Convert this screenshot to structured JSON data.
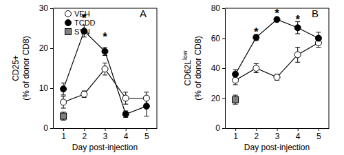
{
  "chart_data": [
    {
      "type": "line",
      "title": "A",
      "xlabel": "Day post-injection",
      "ylabel": [
        [
          "CD25+"
        ],
        [
          "(% of donor CD8)"
        ]
      ],
      "x": [
        1,
        2,
        3,
        4,
        5
      ],
      "xlim": [
        0.5,
        5.5
      ],
      "xticks": [
        1,
        2,
        3,
        4,
        5
      ],
      "ylim": [
        0,
        30
      ],
      "yticks": [
        0,
        10,
        20,
        30
      ],
      "legend": "upper left",
      "series": [
        {
          "name": "VEH",
          "color": "#ffffff",
          "marker": "circle",
          "line_style": "solid",
          "values": [
            6.5,
            8.5,
            14.8,
            7.5,
            7.5
          ],
          "errors": [
            1.5,
            0.8,
            1.5,
            1.5,
            1.5
          ]
        },
        {
          "name": "TCDD",
          "color": "#000000",
          "marker": "circle",
          "line_style": "solid",
          "values": [
            9.8,
            24.3,
            19.2,
            3.5,
            5.5
          ],
          "errors": [
            1.5,
            1.5,
            1.0,
            0.8,
            2.5
          ]
        },
        {
          "name": "SYN",
          "color": "#808080",
          "marker": "square",
          "line_style": "none",
          "values": [
            3,
            null,
            null,
            null,
            null
          ],
          "errors": [
            1,
            null,
            null,
            null,
            null
          ]
        }
      ],
      "annotations": [
        {
          "text": "*",
          "x": 2,
          "y": 28
        },
        {
          "text": "*",
          "x": 3,
          "y": 23.3
        }
      ]
    },
    {
      "type": "line",
      "title": "B",
      "xlabel": "Day post-injection",
      "ylabel": [
        [
          "CD62L",
          "low"
        ],
        [
          "(% of donor CD8)"
        ]
      ],
      "x": [
        1,
        2,
        3,
        4,
        5
      ],
      "xlim": [
        0.5,
        5.5
      ],
      "xticks": [
        1,
        2,
        3,
        4,
        5
      ],
      "ylim": [
        0,
        80
      ],
      "yticks": [
        0,
        20,
        40,
        60,
        80
      ],
      "series": [
        {
          "name": "VEH",
          "color": "#ffffff",
          "marker": "circle",
          "line_style": "solid",
          "values": [
            32,
            40,
            34,
            49,
            57
          ],
          "errors": [
            3,
            3,
            2,
            5,
            3
          ]
        },
        {
          "name": "TCDD",
          "color": "#000000",
          "marker": "circle",
          "line_style": "solid",
          "values": [
            36,
            60.5,
            72.5,
            67,
            60
          ],
          "errors": [
            3,
            2,
            1.5,
            4,
            4
          ]
        },
        {
          "name": "SYN",
          "color": "#808080",
          "marker": "square",
          "line_style": "none",
          "values": [
            19,
            null,
            null,
            null,
            null
          ],
          "errors": [
            3,
            null,
            null,
            null,
            null
          ]
        }
      ],
      "annotations": [
        {
          "text": "*",
          "x": 2,
          "y": 65.5
        },
        {
          "text": "*",
          "x": 3,
          "y": 77.5
        },
        {
          "text": "*",
          "x": 4,
          "y": 73.5
        }
      ]
    }
  ]
}
